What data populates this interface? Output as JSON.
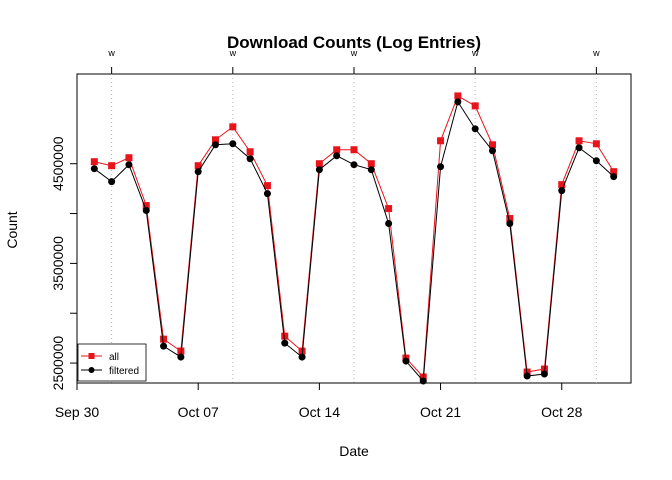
{
  "chart_data": {
    "type": "line",
    "title": "Download Counts (Log Entries)",
    "xlabel": "Date",
    "ylabel": "Count",
    "x": [
      "2018-10-01",
      "2018-10-02",
      "2018-10-03",
      "2018-10-04",
      "2018-10-05",
      "2018-10-06",
      "2018-10-07",
      "2018-10-08",
      "2018-10-09",
      "2018-10-10",
      "2018-10-11",
      "2018-10-12",
      "2018-10-13",
      "2018-10-14",
      "2018-10-15",
      "2018-10-16",
      "2018-10-17",
      "2018-10-18",
      "2018-10-19",
      "2018-10-20",
      "2018-10-21",
      "2018-10-22",
      "2018-10-23",
      "2018-10-24",
      "2018-10-25",
      "2018-10-26",
      "2018-10-27",
      "2018-10-28",
      "2018-10-29",
      "2018-10-30",
      "2018-10-31"
    ],
    "xlim": [
      "2018-09-30",
      "2018-11-01"
    ],
    "x_ticks": [
      {
        "date": "2018-09-30",
        "label": "Sep 30"
      },
      {
        "date": "2018-10-07",
        "label": "Oct 07"
      },
      {
        "date": "2018-10-14",
        "label": "Oct 14"
      },
      {
        "date": "2018-10-21",
        "label": "Oct 21"
      },
      {
        "date": "2018-10-28",
        "label": "Oct 28"
      }
    ],
    "y_ticks": [
      2500000,
      3500000,
      4500000
    ],
    "y_minor_ticks": [
      3000000,
      4000000
    ],
    "ylim": [
      2300000,
      5400000
    ],
    "top_markers": [
      {
        "date": "2018-10-02",
        "label": "w"
      },
      {
        "date": "2018-10-09",
        "label": "w"
      },
      {
        "date": "2018-10-16",
        "label": "w"
      },
      {
        "date": "2018-10-23",
        "label": "w"
      },
      {
        "date": "2018-10-30",
        "label": "w"
      }
    ],
    "grid": "vertical dotted at top markers",
    "legend_position": "bottom-left",
    "series": [
      {
        "name": "all",
        "color": "#e8141c",
        "marker": "square",
        "values": [
          4520000,
          4480000,
          4560000,
          4080000,
          2740000,
          2620000,
          4480000,
          4740000,
          4870000,
          4620000,
          4280000,
          2770000,
          2620000,
          4500000,
          4640000,
          4640000,
          4500000,
          4050000,
          2550000,
          2360000,
          4730000,
          5180000,
          5080000,
          4690000,
          3950000,
          2410000,
          2440000,
          4290000,
          4730000,
          4700000,
          4420000
        ]
      },
      {
        "name": "filtered",
        "color": "#000000",
        "marker": "circle",
        "values": [
          4450000,
          4320000,
          4490000,
          4030000,
          2670000,
          2560000,
          4420000,
          4690000,
          4700000,
          4550000,
          4200000,
          2700000,
          2560000,
          4440000,
          4580000,
          4490000,
          4440000,
          3900000,
          2520000,
          2320000,
          4470000,
          5120000,
          4850000,
          4630000,
          3900000,
          2370000,
          2390000,
          4230000,
          4660000,
          4530000,
          4370000
        ]
      }
    ]
  }
}
